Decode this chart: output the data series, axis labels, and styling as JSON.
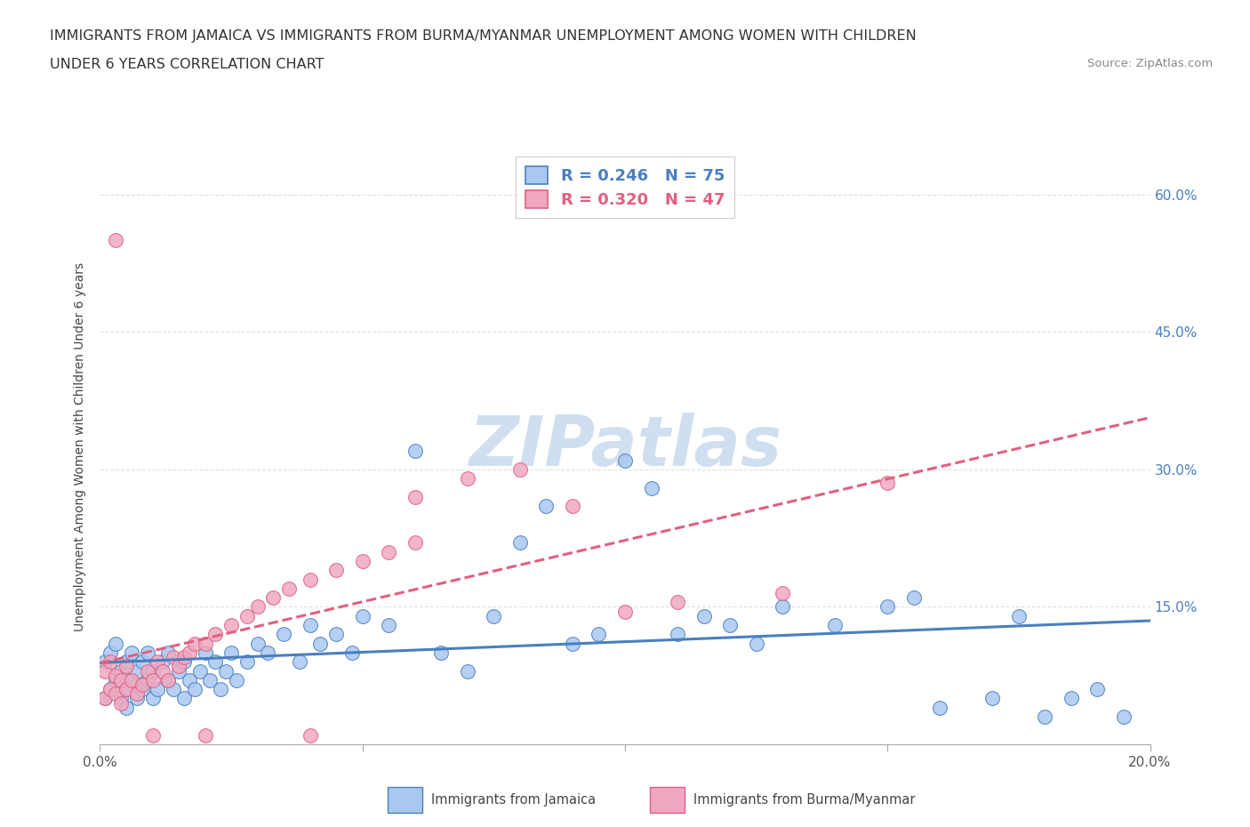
{
  "title_line1": "IMMIGRANTS FROM JAMAICA VS IMMIGRANTS FROM BURMA/MYANMAR UNEMPLOYMENT AMONG WOMEN WITH CHILDREN",
  "title_line2": "UNDER 6 YEARS CORRELATION CHART",
  "source": "Source: ZipAtlas.com",
  "ylabel": "Unemployment Among Women with Children Under 6 years",
  "xlim": [
    0.0,
    0.2
  ],
  "ylim": [
    0.0,
    0.65
  ],
  "x_ticks": [
    0.0,
    0.05,
    0.1,
    0.15,
    0.2
  ],
  "x_tick_labels": [
    "0.0%",
    "",
    "",
    "",
    "20.0%"
  ],
  "y_ticks": [
    0.0,
    0.15,
    0.3,
    0.45,
    0.6
  ],
  "y_tick_labels": [
    "",
    "15.0%",
    "30.0%",
    "45.0%",
    "60.0%"
  ],
  "color_jamaica": "#a8c8f0",
  "color_burma": "#f0a8c0",
  "line_color_jamaica": "#4a7fc0",
  "line_color_burma": "#e06080",
  "watermark_color": "#d0dff0",
  "background_color": "#ffffff",
  "grid_color": "#cccccc",
  "jamaica_x": [
    0.001,
    0.001,
    0.002,
    0.002,
    0.003,
    0.003,
    0.004,
    0.004,
    0.005,
    0.005,
    0.005,
    0.006,
    0.006,
    0.007,
    0.007,
    0.008,
    0.008,
    0.009,
    0.009,
    0.01,
    0.01,
    0.011,
    0.012,
    0.013,
    0.013,
    0.014,
    0.015,
    0.016,
    0.016,
    0.017,
    0.018,
    0.019,
    0.02,
    0.021,
    0.022,
    0.023,
    0.024,
    0.025,
    0.026,
    0.028,
    0.03,
    0.032,
    0.035,
    0.038,
    0.04,
    0.042,
    0.045,
    0.048,
    0.05,
    0.055,
    0.06,
    0.065,
    0.07,
    0.075,
    0.08,
    0.085,
    0.09,
    0.095,
    0.1,
    0.105,
    0.11,
    0.115,
    0.12,
    0.125,
    0.13,
    0.14,
    0.15,
    0.155,
    0.16,
    0.17,
    0.175,
    0.18,
    0.185,
    0.19,
    0.195
  ],
  "jamaica_y": [
    0.05,
    0.09,
    0.06,
    0.1,
    0.07,
    0.11,
    0.05,
    0.08,
    0.06,
    0.09,
    0.04,
    0.07,
    0.1,
    0.05,
    0.08,
    0.06,
    0.09,
    0.07,
    0.1,
    0.05,
    0.08,
    0.06,
    0.09,
    0.07,
    0.1,
    0.06,
    0.08,
    0.05,
    0.09,
    0.07,
    0.06,
    0.08,
    0.1,
    0.07,
    0.09,
    0.06,
    0.08,
    0.1,
    0.07,
    0.09,
    0.11,
    0.1,
    0.12,
    0.09,
    0.13,
    0.11,
    0.12,
    0.1,
    0.14,
    0.13,
    0.32,
    0.1,
    0.08,
    0.14,
    0.22,
    0.26,
    0.11,
    0.12,
    0.31,
    0.28,
    0.12,
    0.14,
    0.13,
    0.11,
    0.15,
    0.13,
    0.15,
    0.16,
    0.04,
    0.05,
    0.14,
    0.03,
    0.05,
    0.06,
    0.03
  ],
  "burma_x": [
    0.001,
    0.001,
    0.002,
    0.002,
    0.003,
    0.003,
    0.004,
    0.004,
    0.005,
    0.005,
    0.006,
    0.007,
    0.008,
    0.009,
    0.01,
    0.011,
    0.012,
    0.013,
    0.014,
    0.015,
    0.016,
    0.017,
    0.018,
    0.02,
    0.022,
    0.025,
    0.028,
    0.03,
    0.033,
    0.036,
    0.04,
    0.045,
    0.05,
    0.055,
    0.06,
    0.07,
    0.08,
    0.09,
    0.1,
    0.11,
    0.13,
    0.15,
    0.003,
    0.01,
    0.02,
    0.04,
    0.06
  ],
  "burma_y": [
    0.05,
    0.08,
    0.06,
    0.09,
    0.055,
    0.075,
    0.045,
    0.07,
    0.06,
    0.085,
    0.07,
    0.055,
    0.065,
    0.08,
    0.07,
    0.09,
    0.08,
    0.07,
    0.095,
    0.085,
    0.095,
    0.1,
    0.11,
    0.11,
    0.12,
    0.13,
    0.14,
    0.15,
    0.16,
    0.17,
    0.18,
    0.19,
    0.2,
    0.21,
    0.22,
    0.29,
    0.3,
    0.26,
    0.145,
    0.155,
    0.165,
    0.285,
    0.55,
    0.01,
    0.01,
    0.01,
    0.27
  ]
}
